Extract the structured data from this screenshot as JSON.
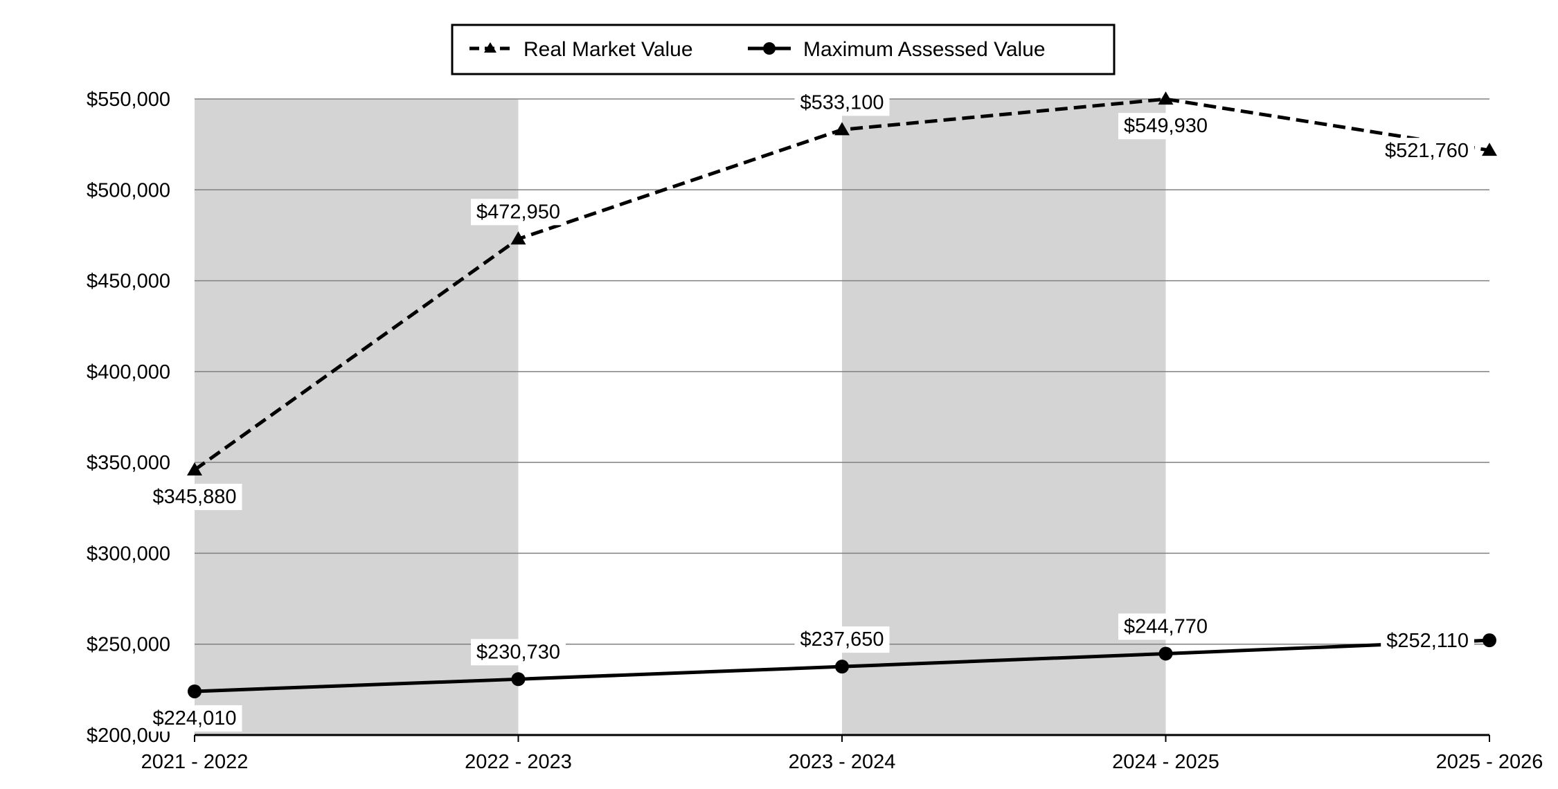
{
  "chart_data": {
    "type": "line",
    "categories": [
      "2021 - 2022",
      "2022 - 2023",
      "2023 - 2024",
      "2024 - 2025",
      "2025 - 2026"
    ],
    "series": [
      {
        "name": "Real Market Value",
        "values": [
          345880,
          472950,
          533100,
          549930,
          521760
        ],
        "labels": [
          "$345,880",
          "$472,950",
          "$533,100",
          "$549,930",
          "$521,760"
        ],
        "line_style": "dashed",
        "marker": "triangle",
        "color": "#000000"
      },
      {
        "name": "Maximum Assessed Value",
        "values": [
          224010,
          230730,
          237650,
          244770,
          252110
        ],
        "labels": [
          "$224,010",
          "$230,730",
          "$237,650",
          "$244,770",
          "$252,110"
        ],
        "line_style": "solid",
        "marker": "circle",
        "color": "#000000"
      }
    ],
    "ylim": [
      200000,
      550000
    ],
    "yticks": [
      200000,
      250000,
      300000,
      350000,
      400000,
      450000,
      500000,
      550000
    ],
    "ytick_labels": [
      "$200,000",
      "$250,000",
      "$300,000",
      "$350,000",
      "$400,000",
      "$450,000",
      "$500,000",
      "$550,000"
    ],
    "grid": "horizontal",
    "shaded_bands": [
      "2021 - 2022",
      "2023 - 2024"
    ],
    "band_color": "#d4d4d4",
    "legend_position": "top-center"
  }
}
